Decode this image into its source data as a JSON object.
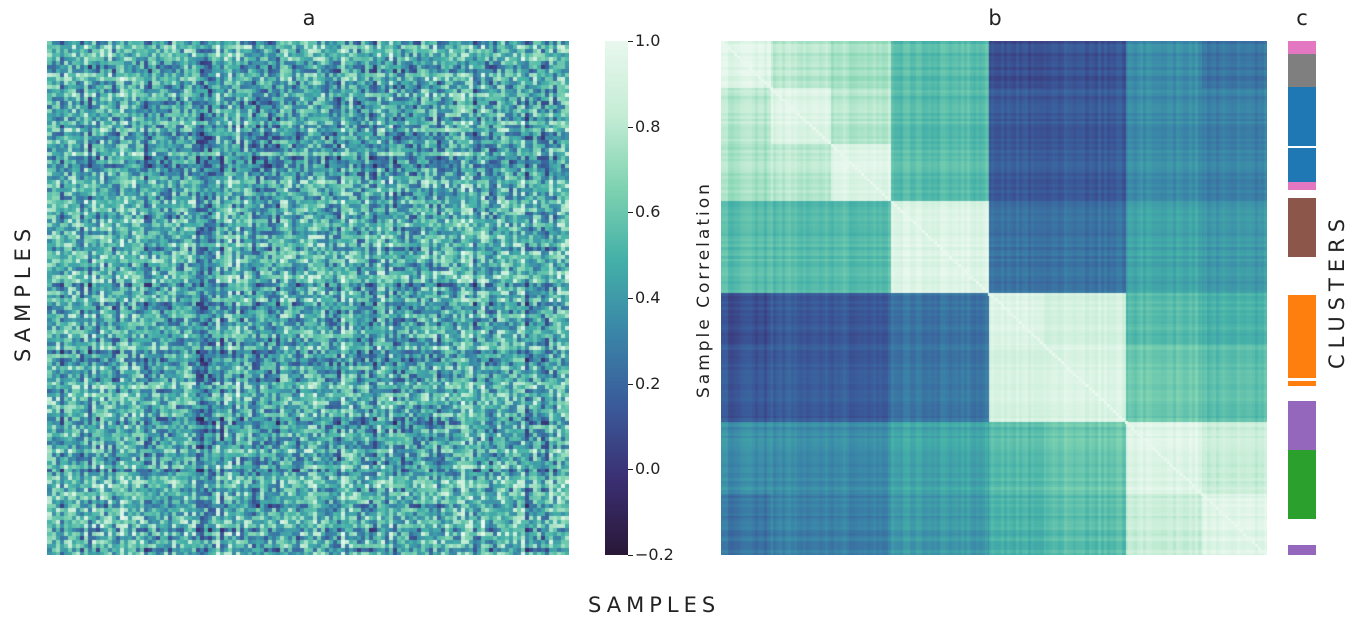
{
  "panels": {
    "a": {
      "title": "a",
      "ylabel": "SAMPLES"
    },
    "b": {
      "title": "b",
      "ylabel": "Sample Correlation"
    },
    "c": {
      "title": "c",
      "ylabel": "CLUSTERS"
    }
  },
  "shared_xlabel": "SAMPLES",
  "chart_data": [
    {
      "type": "heatmap",
      "panel": "a",
      "title": "a",
      "ylabel": "SAMPLES",
      "xlabel": "SAMPLES",
      "description_values": "sample-by-sample matrix, unordered, values roughly 0.1–0.9",
      "vmin": -0.2,
      "vmax": 1.0
    },
    {
      "type": "heatmap",
      "panel": "b",
      "title": "b",
      "ylabel": "Sample Correlation",
      "xlabel": "SAMPLES",
      "vmin": -0.2,
      "vmax": 1.0,
      "colorbar": {
        "ticks": [
          -0.2,
          0.0,
          0.2,
          0.4,
          0.6,
          0.8,
          1.0
        ],
        "tick_labels": [
          "−0.2",
          "0.0",
          "0.2",
          "0.4",
          "0.6",
          "0.8",
          "1.0"
        ]
      },
      "block_boundaries": [
        0,
        0.09,
        0.2,
        0.31,
        0.49,
        0.59,
        0.74,
        0.88,
        1.0
      ],
      "block_matrix": [
        [
          0.95,
          0.8,
          0.75,
          0.55,
          0.1,
          0.12,
          0.35,
          0.25
        ],
        [
          0.8,
          0.95,
          0.8,
          0.55,
          0.15,
          0.15,
          0.35,
          0.3
        ],
        [
          0.75,
          0.8,
          0.95,
          0.55,
          0.15,
          0.15,
          0.35,
          0.3
        ],
        [
          0.55,
          0.55,
          0.55,
          0.95,
          0.25,
          0.25,
          0.45,
          0.4
        ],
        [
          0.1,
          0.15,
          0.15,
          0.25,
          0.95,
          0.9,
          0.55,
          0.5
        ],
        [
          0.12,
          0.15,
          0.15,
          0.25,
          0.9,
          0.92,
          0.6,
          0.55
        ],
        [
          0.35,
          0.35,
          0.35,
          0.45,
          0.55,
          0.6,
          0.95,
          0.85
        ],
        [
          0.25,
          0.3,
          0.3,
          0.4,
          0.5,
          0.55,
          0.85,
          0.95
        ]
      ]
    },
    {
      "type": "cluster_bar",
      "panel": "c",
      "title": "c",
      "ylabel": "CLUSTERS",
      "segments": [
        {
          "from": 0.0,
          "to": 0.025,
          "color": "#e377c2"
        },
        {
          "from": 0.025,
          "to": 0.09,
          "color": "#7f7f7f"
        },
        {
          "from": 0.09,
          "to": 0.205,
          "color": "#1f77b4"
        },
        {
          "from": 0.208,
          "to": 0.275,
          "color": "#1f77b4"
        },
        {
          "from": 0.275,
          "to": 0.29,
          "color": "#e377c2"
        },
        {
          "from": 0.305,
          "to": 0.42,
          "color": "#8c564b"
        },
        {
          "from": 0.495,
          "to": 0.655,
          "color": "#ff7f0e"
        },
        {
          "from": 0.662,
          "to": 0.672,
          "color": "#ff7f0e"
        },
        {
          "from": 0.7,
          "to": 0.795,
          "color": "#9467bd"
        },
        {
          "from": 0.795,
          "to": 0.93,
          "color": "#2ca02c"
        },
        {
          "from": 0.98,
          "to": 1.0,
          "color": "#9467bd"
        }
      ]
    }
  ],
  "colormap_stops": [
    "#2a1838",
    "#3b2f72",
    "#3a5a9a",
    "#3a85a8",
    "#44b0a8",
    "#7fd3b1",
    "#c6edd6",
    "#e9f8ee"
  ]
}
